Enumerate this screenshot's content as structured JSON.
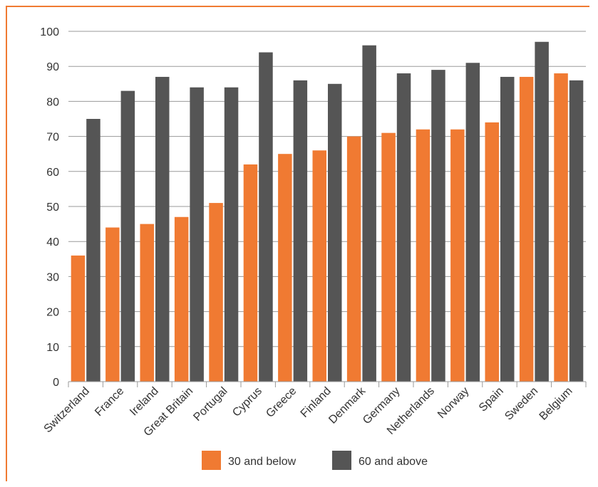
{
  "colors": {
    "frame": "#f07a32",
    "grid": "#9a9a9a",
    "axis": "#9a9a9a"
  },
  "chart_data": {
    "type": "bar",
    "title": "",
    "xlabel": "",
    "ylabel": "",
    "ylim": [
      0,
      100
    ],
    "yticks": [
      0,
      10,
      20,
      30,
      40,
      50,
      60,
      70,
      80,
      90,
      100
    ],
    "grid": true,
    "legend_position": "bottom",
    "categories": [
      "Switzerland",
      "France",
      "Ireland",
      "Great Britain",
      "Portugal",
      "Cyprus",
      "Greece",
      "Finland",
      "Denmark",
      "Germany",
      "Netherlands",
      "Norway",
      "Spain",
      "Sweden",
      "Belgium"
    ],
    "series": [
      {
        "name": "30 and below",
        "color": "#f07a32",
        "values": [
          36,
          44,
          45,
          47,
          51,
          62,
          65,
          66,
          70,
          71,
          72,
          72,
          74,
          87,
          88
        ]
      },
      {
        "name": "60 and above",
        "color": "#555555",
        "values": [
          75,
          83,
          87,
          84,
          84,
          94,
          86,
          85,
          96,
          88,
          89,
          91,
          87,
          97,
          86
        ]
      }
    ]
  }
}
